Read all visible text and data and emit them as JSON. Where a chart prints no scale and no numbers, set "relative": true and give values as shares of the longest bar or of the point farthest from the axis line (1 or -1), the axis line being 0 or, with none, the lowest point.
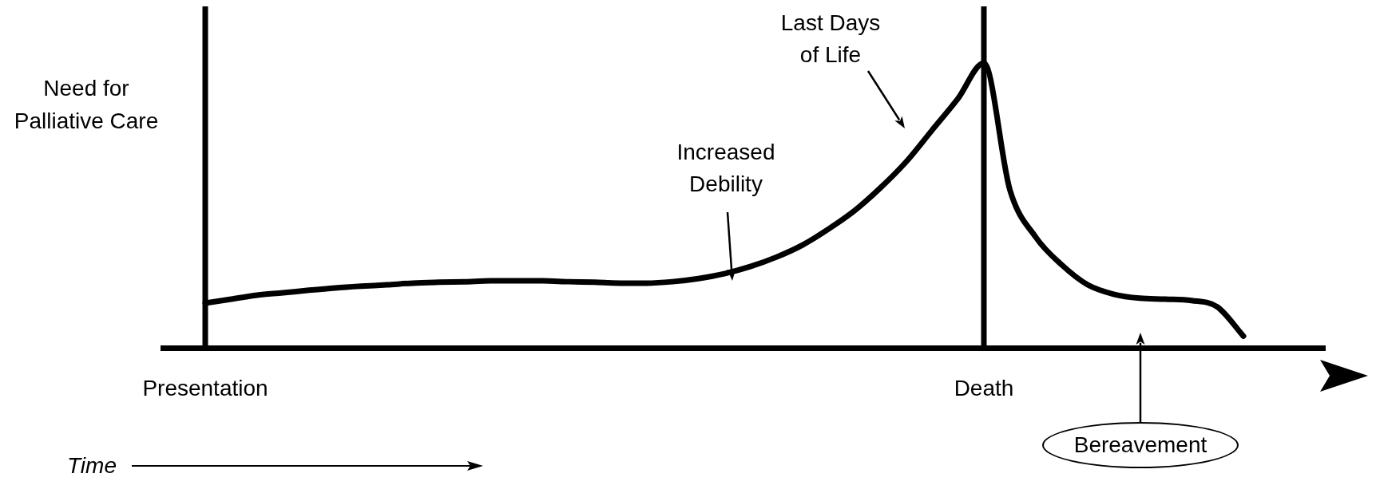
{
  "chart_data": {
    "type": "line",
    "relative": true,
    "ylabel": "Need for Palliative Care",
    "xlabel": "Time",
    "categories": [
      "Presentation",
      null,
      null,
      null,
      null,
      null,
      null,
      null,
      null,
      null,
      null,
      null,
      null,
      null,
      null,
      null,
      null,
      null,
      null,
      null,
      null,
      null,
      null,
      null,
      null,
      null,
      null,
      null,
      null,
      null,
      "Death",
      null,
      null,
      null,
      null,
      null,
      null,
      null,
      null,
      null,
      null
    ],
    "series": [
      {
        "color": "#000000",
        "values": [
          0.158,
          0.172,
          0.186,
          0.194,
          0.203,
          0.211,
          0.217,
          0.222,
          0.228,
          0.231,
          0.233,
          0.236,
          0.236,
          0.236,
          0.233,
          0.231,
          0.228,
          0.228,
          0.233,
          0.244,
          0.261,
          0.286,
          0.319,
          0.361,
          0.417,
          0.481,
          0.561,
          0.653,
          0.764,
          0.875,
          1.0,
          0.556,
          0.389,
          0.292,
          0.222,
          0.189,
          0.175,
          0.172,
          0.167,
          0.144,
          0.042
        ]
      }
    ],
    "ref_lines": [
      {
        "axis": "x",
        "value": "Presentation",
        "color": "#000000"
      },
      {
        "axis": "x",
        "value": "Death",
        "color": "#000000"
      }
    ],
    "annotations": [
      "Increased Debility",
      "Last Days of Life",
      "Bereavement"
    ],
    "marker": "none",
    "line_style": "solid",
    "grid": false,
    "legend": false
  }
}
